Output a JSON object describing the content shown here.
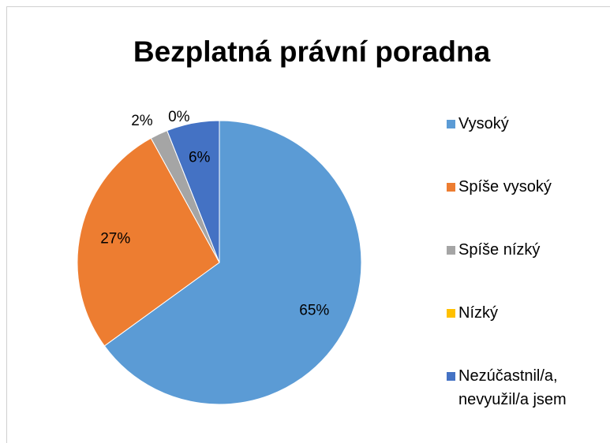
{
  "chart_data": {
    "type": "pie",
    "title": "Bezplatná právní poradna",
    "categories": [
      "Vysoký",
      "Spíše vysoký",
      "Spíše nízký",
      "Nízký",
      "Nezúčastnil/a, nevyužil/a jsem"
    ],
    "values": [
      65,
      27,
      2,
      0,
      6
    ],
    "value_labels": [
      "65%",
      "27%",
      "2%",
      "0%",
      "6%"
    ],
    "colors": [
      "#5b9bd5",
      "#ed7d31",
      "#a5a5a5",
      "#ffc000",
      "#4472c4"
    ],
    "legend": "right"
  }
}
